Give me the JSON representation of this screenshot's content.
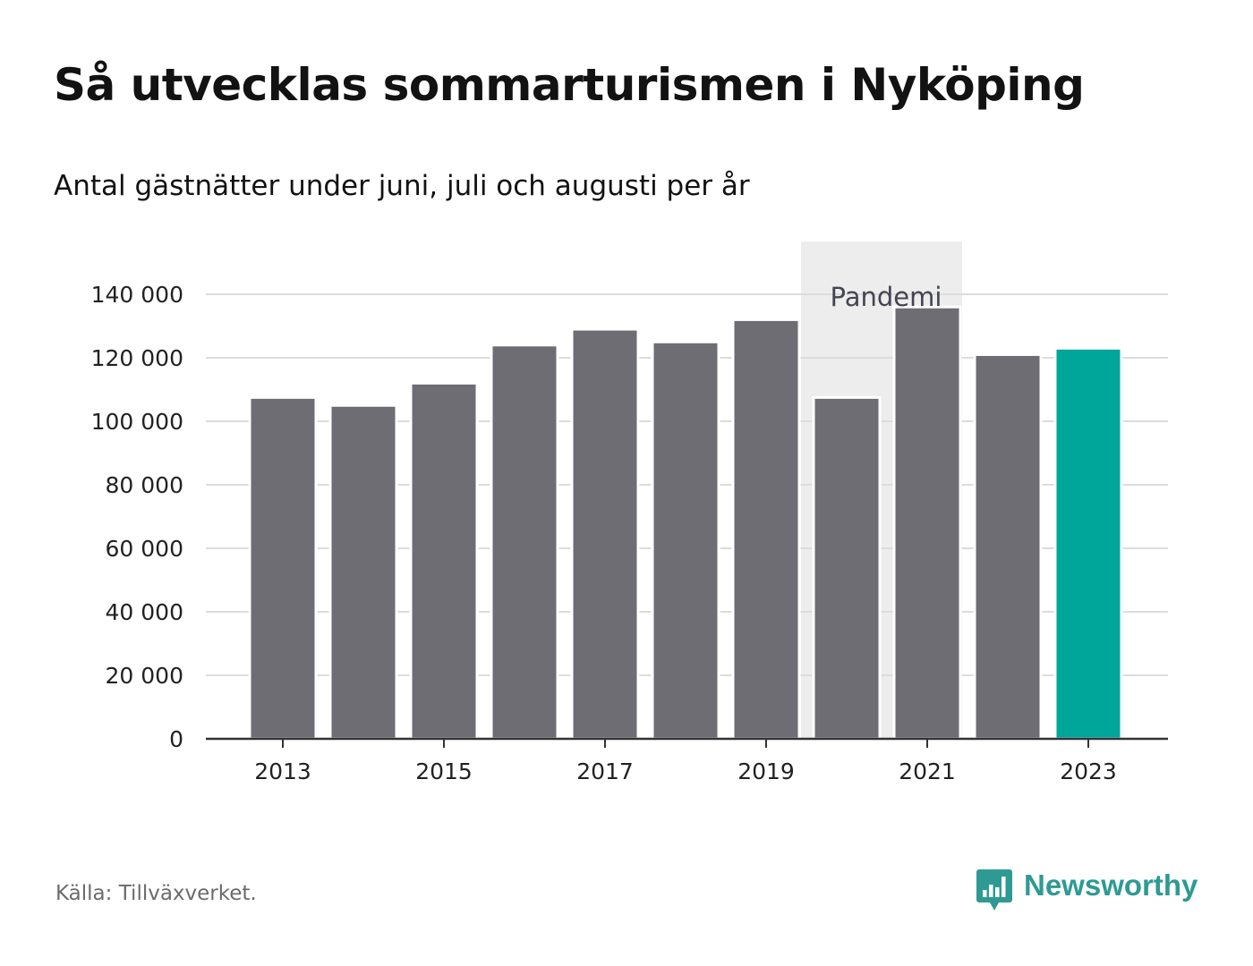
{
  "header": {
    "title": "Så utvecklas sommarturismen i Nyköping",
    "subtitle": "Antal gästnätter under juni, juli och augusti per år"
  },
  "footer": {
    "source": "Källa: Tillväxverket.",
    "brand": "Newsworthy"
  },
  "colors": {
    "bar": "#6e6d74",
    "highlight": "#00a699",
    "grid": "#dcdcdc",
    "axis": "#333333",
    "shade": "#ededed",
    "brand": "#2f9a93"
  },
  "icons": {
    "brand_logo": "bar-chart-speech-bubble-icon"
  },
  "chart_data": {
    "type": "bar",
    "categories": [
      "2013",
      "2014",
      "2015",
      "2016",
      "2017",
      "2018",
      "2019",
      "2020",
      "2021",
      "2022",
      "2023"
    ],
    "values": [
      107500,
      105000,
      112000,
      124000,
      129000,
      125000,
      132000,
      107500,
      136000,
      121000,
      123000
    ],
    "highlight_category": "2023",
    "x_tick_labels": [
      "2013",
      "2015",
      "2017",
      "2019",
      "2021",
      "2023"
    ],
    "y_ticks": [
      0,
      20000,
      40000,
      60000,
      80000,
      100000,
      120000,
      140000
    ],
    "y_tick_labels": [
      "0",
      "20 000",
      "40 000",
      "60 000",
      "80 000",
      "100 000",
      "120 000",
      "140 000"
    ],
    "ylim": [
      0,
      140000
    ],
    "grid": true,
    "xlabel": "",
    "ylabel": "",
    "annotation": {
      "label": "Pandemi",
      "categories": [
        "2020",
        "2021"
      ]
    }
  }
}
